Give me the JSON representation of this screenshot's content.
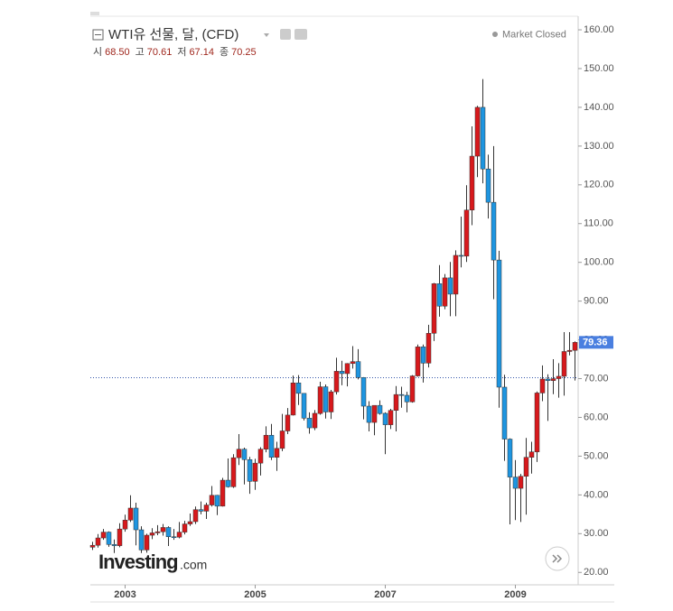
{
  "chart_data": {
    "type": "candlestick",
    "title": "WTI유 선물, 달, (CFD)",
    "status": "Market Closed",
    "ohlc_legend": [
      {
        "name": "시",
        "value": {
          "value": 68.5,
          "label": "68.50"
        }
      },
      {
        "name": "고",
        "value": {
          "value": 70.61,
          "label": "70.61"
        }
      },
      {
        "name": "저",
        "value": {
          "value": 67.14,
          "label": "67.14"
        }
      },
      {
        "name": "종",
        "value": {
          "value": 70.25,
          "label": "70.25"
        }
      }
    ],
    "logo": {
      "brand": "Investing",
      "suffix": ".com"
    },
    "up_color": "#d7191c",
    "down_color": "#1e95e0",
    "categories": [
      null,
      null,
      null,
      null,
      null,
      null,
      "2003",
      null,
      null,
      null,
      null,
      null,
      null,
      null,
      null,
      null,
      null,
      null,
      null,
      null,
      null,
      null,
      null,
      null,
      null,
      null,
      null,
      null,
      null,
      null,
      "2005",
      null,
      null,
      null,
      null,
      null,
      null,
      null,
      null,
      null,
      null,
      null,
      null,
      null,
      null,
      null,
      null,
      null,
      null,
      null,
      null,
      null,
      null,
      null,
      "2007",
      null,
      null,
      null,
      null,
      null,
      null,
      null,
      null,
      null,
      null,
      null,
      null,
      null,
      null,
      null,
      null,
      null,
      null,
      null,
      null,
      null,
      null,
      null,
      "2009",
      null,
      null,
      null,
      null,
      null,
      null,
      null,
      null,
      null,
      null,
      null
    ],
    "open": [
      26.5,
      27.0,
      28.9,
      30.4,
      27.2,
      26.9,
      31.2,
      33.5,
      36.6,
      31.0,
      25.8,
      29.6,
      30.2,
      30.5,
      31.6,
      29.2,
      29.1,
      30.4,
      32.5,
      33.1,
      36.2,
      35.8,
      37.4,
      39.9,
      37.1,
      43.8,
      42.1,
      49.6,
      51.8,
      49.1,
      43.5,
      48.2,
      51.8,
      55.4,
      49.7,
      52.0,
      56.5,
      60.6,
      68.9,
      66.2,
      59.8,
      57.3,
      61.0,
      67.9,
      61.4,
      66.6,
      71.9,
      71.3,
      73.9,
      74.4,
      70.3,
      62.9,
      58.7,
      63.1,
      61.05,
      58.1,
      61.8,
      65.9,
      65.7,
      64.0,
      70.7,
      78.2,
      74.0,
      81.7,
      94.5,
      88.7,
      96.0,
      91.8,
      101.8,
      101.6,
      113.5,
      127.4,
      140.0,
      124.1,
      115.5,
      100.6,
      67.8,
      54.4,
      44.6,
      41.7,
      44.8,
      49.7,
      51.1,
      66.3,
      69.9,
      69.5,
      70.0,
      70.6,
      77.0,
      77.3
    ],
    "high": [
      27.9,
      29.9,
      31.2,
      30.6,
      28.5,
      32.7,
      34.9,
      39.9,
      38.0,
      31.9,
      30.0,
      31.4,
      32.2,
      32.5,
      31.9,
      31.2,
      33.0,
      33.3,
      35.2,
      37.0,
      38.3,
      38.0,
      42.3,
      40.0,
      44.4,
      49.4,
      50.5,
      55.7,
      52.2,
      49.8,
      49.3,
      52.3,
      57.7,
      58.3,
      53.7,
      60.9,
      62.4,
      70.8,
      70.9,
      66.2,
      61.3,
      61.9,
      69.2,
      68.5,
      67.1,
      75.4,
      74.6,
      74.0,
      78.4,
      77.6,
      70.4,
      64.2,
      62.6,
      64.4,
      61.3,
      62.2,
      68.1,
      67.9,
      66.6,
      70.9,
      78.8,
      78.8,
      83.9,
      94.7,
      99.3,
      97.0,
      100.1,
      103.1,
      111.8,
      119.9,
      135.1,
      140.4,
      147.3,
      127.8,
      130.0,
      103.0,
      71.0,
      54.6,
      49.0,
      45.4,
      54.7,
      53.7,
      66.7,
      73.4,
      71.1,
      75.0,
      74.0,
      82.0,
      82.0,
      79.6
    ],
    "low": [
      25.8,
      26.4,
      28.4,
      26.6,
      25.0,
      26.5,
      30.5,
      33.0,
      27.0,
      25.0,
      25.1,
      28.6,
      29.6,
      29.5,
      26.8,
      28.4,
      28.8,
      29.8,
      32.0,
      32.5,
      35.0,
      33.8,
      37.0,
      34.8,
      37.0,
      41.9,
      41.8,
      47.7,
      42.7,
      40.3,
      41.3,
      45.0,
      51.0,
      49.0,
      46.2,
      51.3,
      55.7,
      60.5,
      63.2,
      59.2,
      55.8,
      56.7,
      60.7,
      59.7,
      59.6,
      65.9,
      68.3,
      68.0,
      72.6,
      69.8,
      59.5,
      56.4,
      55.4,
      60.7,
      50.5,
      57.0,
      56.4,
      62.5,
      61.3,
      63.8,
      70.5,
      69.0,
      72.9,
      79.7,
      86.0,
      87.9,
      86.1,
      86.1,
      98.7,
      100.1,
      109.6,
      122.0,
      120.4,
      111.3,
      90.5,
      62.5,
      48.8,
      32.4,
      33.5,
      33.0,
      34.9,
      45.5,
      48.5,
      64.2,
      59.1,
      66.0,
      65.1,
      65.6,
      76.0,
      69.5
    ],
    "close": [
      27.0,
      28.9,
      30.4,
      27.2,
      26.9,
      31.2,
      33.5,
      36.6,
      31.0,
      25.8,
      29.6,
      30.2,
      30.5,
      31.6,
      29.2,
      29.1,
      30.4,
      32.5,
      33.1,
      36.2,
      35.8,
      37.4,
      39.9,
      37.1,
      43.8,
      42.1,
      49.6,
      51.8,
      49.1,
      43.5,
      48.2,
      51.8,
      55.4,
      49.7,
      52.0,
      56.5,
      60.6,
      68.9,
      66.2,
      59.8,
      57.3,
      61.05,
      67.9,
      61.4,
      66.6,
      71.9,
      71.3,
      73.9,
      74.4,
      70.3,
      62.9,
      58.7,
      63.1,
      61.0,
      58.1,
      61.8,
      65.9,
      65.7,
      64.0,
      70.7,
      78.2,
      74.0,
      81.7,
      94.5,
      88.7,
      96.0,
      91.8,
      101.8,
      101.6,
      113.5,
      127.4,
      140.0,
      124.1,
      115.5,
      100.6,
      67.8,
      54.4,
      44.6,
      41.7,
      44.8,
      49.7,
      51.1,
      66.3,
      69.9,
      69.5,
      70.0,
      70.6,
      77.0,
      77.3,
      79.36
    ],
    "ylim": [
      16.8,
      163.5
    ],
    "yticks": [
      {
        "value": 20,
        "label": "20.00"
      },
      {
        "value": 30,
        "label": "30.00"
      },
      {
        "value": 40,
        "label": "40.00"
      },
      {
        "value": 50,
        "label": "50.00"
      },
      {
        "value": 60,
        "label": "60.00"
      },
      {
        "value": 70,
        "label": "70.00"
      },
      {
        "value": 80,
        "label": "80.00"
      },
      {
        "value": 90,
        "label": "90.00"
      },
      {
        "value": 100,
        "label": "100.00"
      },
      {
        "value": 110,
        "label": "110.00"
      },
      {
        "value": 120,
        "label": "120.00"
      },
      {
        "value": 130,
        "label": "130.00"
      },
      {
        "value": 140,
        "label": "140.00"
      },
      {
        "value": 150,
        "label": "150.00"
      },
      {
        "value": 160,
        "label": "160.00"
      }
    ]
  }
}
